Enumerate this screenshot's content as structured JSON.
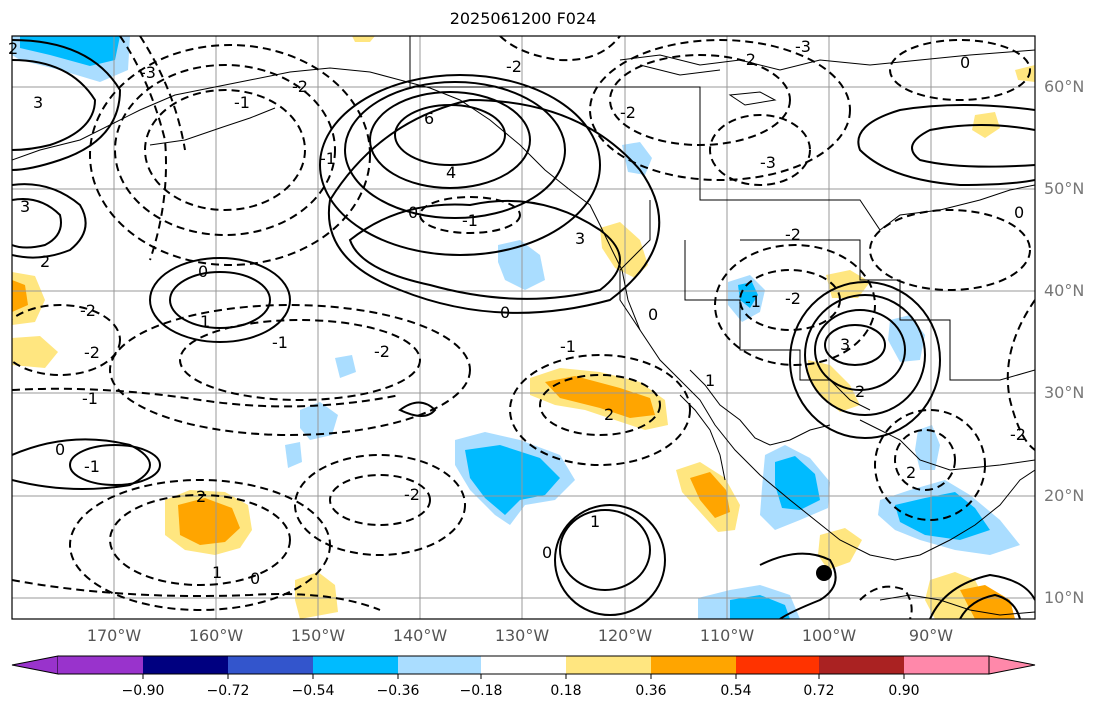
{
  "title": "2025061200 F024",
  "lon_labels": [
    "170°W",
    "160°W",
    "150°W",
    "140°W",
    "130°W",
    "120°W",
    "110°W",
    "100°W",
    "90°W"
  ],
  "lat_labels": [
    "60°N",
    "50°N",
    "40°N",
    "30°N",
    "20°N",
    "10°N"
  ],
  "colorbar": {
    "tick_labels": [
      "−0.90",
      "−0.72",
      "−0.54",
      "−0.36",
      "−0.18",
      "0.18",
      "0.36",
      "0.54",
      "0.72",
      "0.90"
    ],
    "colors": [
      "#9933cc",
      "#000080",
      "#3355cc",
      "#00bbff",
      "#aaddff",
      "#ffffff",
      "#ffe680",
      "#ffa500",
      "#ff3300",
      "#aa2222",
      "#ff88aa"
    ]
  },
  "contour_labels": [
    "6",
    "4",
    "0",
    "-1",
    "-2",
    "1",
    "2",
    "3",
    "-3",
    "2",
    "0",
    "-2",
    "1",
    "-1",
    "0",
    "-1",
    "-2",
    "2",
    "1",
    "-1",
    "0",
    "1",
    "-2",
    "-1",
    "3",
    "-2",
    "2",
    "0",
    "-2",
    "-1",
    "0",
    "3",
    "-3",
    "2",
    "-2",
    "0",
    "-2",
    "-1",
    "2",
    "-1",
    "-2",
    "0",
    "-2",
    "0",
    "-2",
    "-3",
    "3"
  ],
  "colors": {
    "fill_blue": "#00bbff",
    "fill_lightblue": "#aaddff",
    "fill_yellow": "#ffe680",
    "fill_orange": "#ffa500",
    "contour": "#000000",
    "grid": "#999999",
    "coast": "#000000"
  },
  "marker": "black-dot-station"
}
